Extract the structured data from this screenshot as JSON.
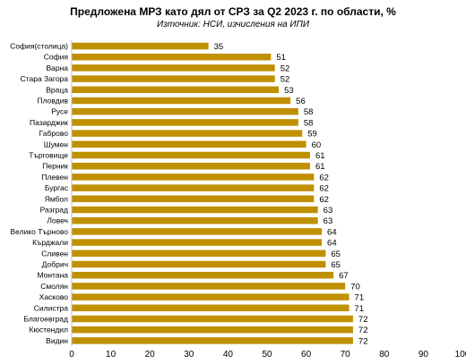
{
  "chart_data": {
    "type": "bar",
    "orientation": "horizontal",
    "title": "Предложена МРЗ като дял от СРЗ за Q2 2023 г. по области, %",
    "subtitle": "Източник: НСИ, изчисления на ИПИ",
    "categories": [
      "София(столица)",
      "София",
      "Варна",
      "Стара Загора",
      "Враца",
      "Пловдив",
      "Русе",
      "Пазарджик",
      "Габрово",
      "Шумен",
      "Търговище",
      "Перник",
      "Плевен",
      "Бургас",
      "Ямбол",
      "Разград",
      "Ловеч",
      "Велико Търново",
      "Кърджали",
      "Сливен",
      "Добрич",
      "Монтана",
      "Смолян",
      "Хасково",
      "Силистра",
      "Благоевград",
      "Кюстендил",
      "Видин"
    ],
    "values": [
      35,
      51,
      52,
      52,
      53,
      56,
      58,
      58,
      59,
      60,
      61,
      61,
      62,
      62,
      62,
      63,
      63,
      64,
      64,
      65,
      65,
      67,
      70,
      71,
      71,
      72,
      72,
      72
    ],
    "xlim": [
      0,
      100
    ],
    "xticks": [
      0,
      10,
      20,
      30,
      40,
      50,
      60,
      70,
      80,
      90,
      100
    ],
    "bar_color": "#bf9000",
    "grid": false,
    "legend": false
  }
}
